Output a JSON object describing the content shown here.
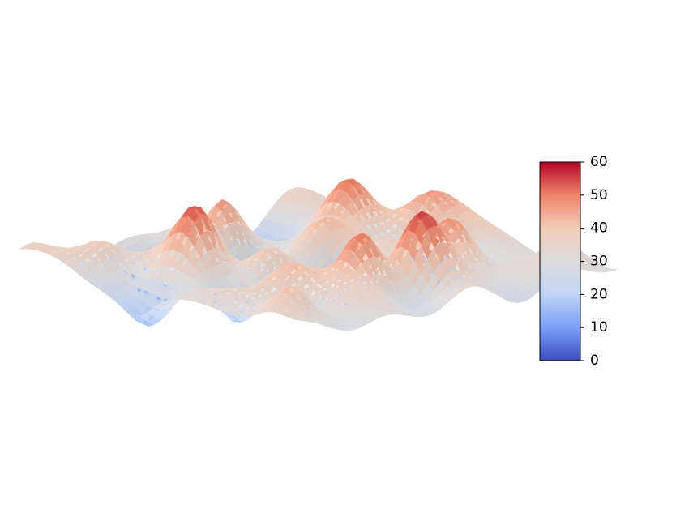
{
  "chart_data": {
    "type": "surface3d",
    "title": "",
    "xlabel": "",
    "ylabel": "",
    "zlabel": "",
    "axes_visible": false,
    "grid": false,
    "colormap": "coolwarm",
    "colormap_stops": [
      "#3b4cc0",
      "#7b9ff9",
      "#c0d4f5",
      "#dddcdc",
      "#f2cbb7",
      "#ee8468",
      "#b40426"
    ],
    "z_range": [
      0,
      60
    ],
    "colorbar": {
      "placement": "right",
      "range": [
        0,
        60
      ],
      "ticks": [
        {
          "value": 0,
          "label": "0"
        },
        {
          "value": 10,
          "label": "10"
        },
        {
          "value": 20,
          "label": "20"
        },
        {
          "value": 30,
          "label": "30"
        },
        {
          "value": 40,
          "label": "40"
        },
        {
          "value": 50,
          "label": "50"
        },
        {
          "value": 60,
          "label": "60"
        }
      ]
    }
  }
}
